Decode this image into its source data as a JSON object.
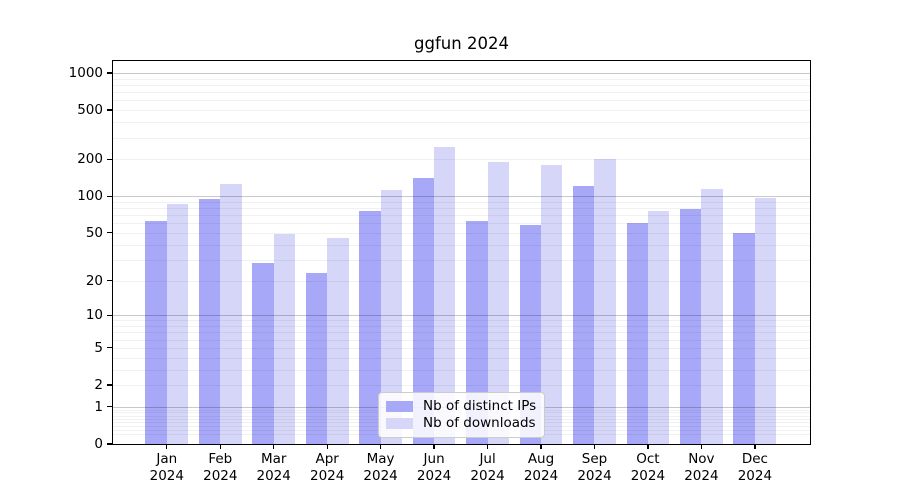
{
  "chart_data": {
    "type": "bar",
    "title": "ggfun 2024",
    "categories": [
      "Jan 2024",
      "Feb 2024",
      "Mar 2024",
      "Apr 2024",
      "May 2024",
      "Jun 2024",
      "Jul 2024",
      "Aug 2024",
      "Sep 2024",
      "Oct 2024",
      "Nov 2024",
      "Dec 2024"
    ],
    "series": [
      {
        "key": "ips",
        "name": "Nb of distinct IPs",
        "color": "#a8a8f8",
        "values": [
          63,
          95,
          28,
          23,
          75,
          140,
          63,
          58,
          120,
          60,
          79,
          50
        ]
      },
      {
        "key": "downloads",
        "name": "Nb of downloads",
        "color": "#d6d6f9",
        "values": [
          87,
          125,
          49,
          45,
          112,
          250,
          190,
          180,
          200,
          76,
          115,
          97
        ]
      }
    ],
    "yscale": "log1p",
    "yticks": [
      0,
      1,
      2,
      5,
      10,
      20,
      50,
      100,
      200,
      500,
      1000
    ],
    "ylim": [
      0,
      1250
    ],
    "xlabel": "",
    "ylabel": "",
    "grid": "horizontal major (1,10,100,1000) + minor log subdivisions",
    "legend_position": "lower center",
    "legend_entries": [
      "Nb of distinct IPs",
      "Nb of downloads"
    ]
  },
  "colors": {
    "background": "#ffffff",
    "spine": "#000000",
    "major_gridline": "#c9c9c9",
    "minor_gridline": "#f0f0f0",
    "legend_border": "#cccccc",
    "ips_bar": "#a8a8f8",
    "downloads_bar": "#d6d6f9"
  }
}
